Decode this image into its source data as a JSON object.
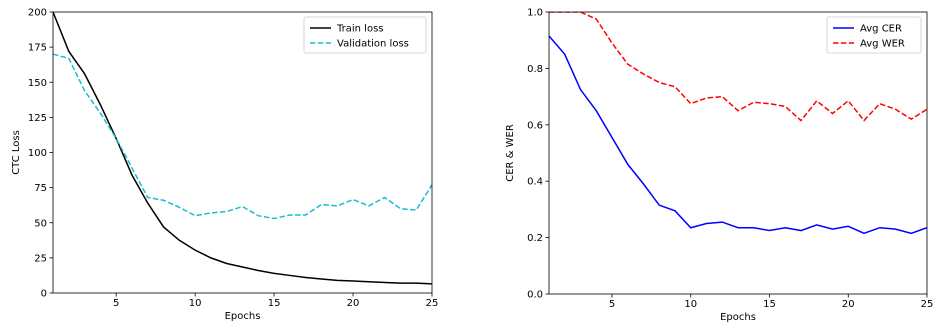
{
  "chart_data": [
    {
      "type": "line",
      "title": "",
      "xlabel": "Epochs",
      "ylabel": "CTC Loss",
      "xlim": [
        1,
        25
      ],
      "ylim": [
        0,
        200
      ],
      "xticks": [
        5,
        10,
        15,
        20,
        25
      ],
      "yticks": [
        0,
        25,
        50,
        75,
        100,
        125,
        150,
        175,
        200
      ],
      "grid": false,
      "legend_position": "top-right",
      "x": [
        1,
        2,
        3,
        4,
        5,
        6,
        7,
        8,
        9,
        10,
        11,
        12,
        13,
        14,
        15,
        16,
        17,
        18,
        19,
        20,
        21,
        22,
        23,
        24,
        25
      ],
      "series": [
        {
          "name": "Train loss",
          "color": "#000000",
          "dash": "solid",
          "values": [
            200,
            172,
            156,
            134,
            110,
            84,
            64,
            47,
            37.5,
            30.5,
            25,
            21,
            18.5,
            16,
            14,
            12.5,
            11,
            10,
            9,
            8.5,
            8,
            7.5,
            7,
            7,
            6.5
          ]
        },
        {
          "name": "Validation loss",
          "color": "#17becf",
          "dash": "dashed",
          "values": [
            170,
            167,
            144,
            128,
            110,
            89,
            68,
            66,
            61,
            55,
            57,
            58,
            61.5,
            55,
            53,
            55.5,
            55.5,
            63,
            62,
            66.5,
            62,
            68,
            60,
            59,
            77
          ]
        }
      ]
    },
    {
      "type": "line",
      "title": "",
      "xlabel": "Epochs",
      "ylabel": "CER & WER",
      "xlim": [
        1,
        25
      ],
      "ylim": [
        0,
        1.0
      ],
      "xticks": [
        5,
        10,
        15,
        20,
        25
      ],
      "yticks": [
        0.0,
        0.2,
        0.4,
        0.6,
        0.8,
        1.0
      ],
      "ytick_labels": [
        "0.0",
        "0.2",
        "0.4",
        "0.6",
        "0.8",
        "1.0"
      ],
      "grid": false,
      "legend_position": "top-right",
      "x": [
        1,
        2,
        3,
        4,
        5,
        6,
        7,
        8,
        9,
        10,
        11,
        12,
        13,
        14,
        15,
        16,
        17,
        18,
        19,
        20,
        21,
        22,
        23,
        24,
        25
      ],
      "series": [
        {
          "name": "Avg CER",
          "color": "#0000ff",
          "dash": "solid",
          "values": [
            0.915,
            0.85,
            0.725,
            0.65,
            0.555,
            0.46,
            0.39,
            0.315,
            0.295,
            0.235,
            0.25,
            0.255,
            0.235,
            0.235,
            0.225,
            0.235,
            0.225,
            0.245,
            0.23,
            0.24,
            0.215,
            0.235,
            0.23,
            0.215,
            0.235
          ]
        },
        {
          "name": "Avg WER",
          "color": "#ff0000",
          "dash": "dashed",
          "values": [
            1.0,
            1.0,
            1.0,
            0.975,
            0.89,
            0.815,
            0.78,
            0.75,
            0.735,
            0.675,
            0.695,
            0.7,
            0.65,
            0.68,
            0.675,
            0.665,
            0.615,
            0.685,
            0.64,
            0.685,
            0.615,
            0.675,
            0.655,
            0.62,
            0.655
          ]
        }
      ]
    }
  ]
}
